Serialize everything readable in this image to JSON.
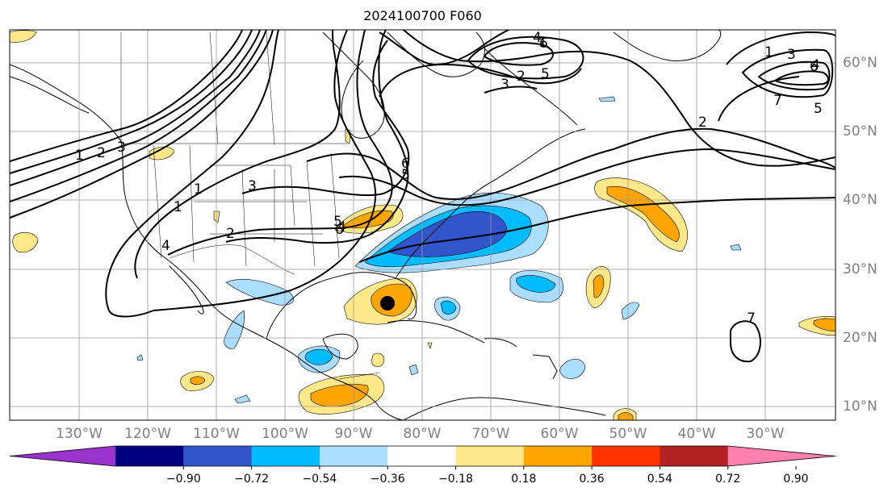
{
  "title": "2024100700 F060",
  "lon_labels": [
    "130°W",
    "120°W",
    "110°W",
    "100°W",
    "90°W",
    "80°W",
    "70°W",
    "60°W",
    "50°W",
    "40°W",
    "30°W"
  ],
  "lat_labels": [
    "60°N",
    "50°N",
    "40°N",
    "30°N",
    "20°N",
    "10°N"
  ],
  "colorbar": {
    "ticks": [
      "−0.90",
      "−0.72",
      "−0.54",
      "−0.36",
      "−0.18",
      "0.18",
      "0.36",
      "0.54",
      "0.72",
      "0.90"
    ],
    "colors": [
      "#9933cc",
      "#000080",
      "#3355cc",
      "#00bbff",
      "#aaddff",
      "#ffffff",
      "#ffe88a",
      "#ffa500",
      "#ff3300",
      "#b22222",
      "#ff7fae"
    ]
  },
  "contour_labels": [
    "1",
    "2",
    "3",
    "4",
    "5",
    "6",
    "1",
    "2",
    "3",
    "4",
    "5",
    "6",
    "7",
    "1",
    "2",
    "3",
    "4",
    "5",
    "6",
    "7",
    "1",
    "2",
    "3",
    "4",
    "5",
    "6",
    "1"
  ],
  "marker": "storm-center"
}
